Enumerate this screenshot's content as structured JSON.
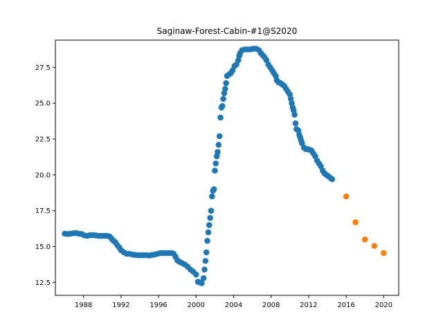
{
  "chart_data": {
    "type": "scatter",
    "title": "Saginaw-Forest-Cabin-#1@S2020",
    "xlabel": "",
    "ylabel": "",
    "xlim": [
      1985.0,
      2021.6
    ],
    "ylim": [
      11.6,
      29.4
    ],
    "x_ticks": [
      1988,
      1992,
      1996,
      2000,
      2004,
      2008,
      2012,
      2016,
      2020
    ],
    "y_ticks": [
      12.5,
      15.0,
      17.5,
      20.0,
      22.5,
      25.0,
      27.5
    ],
    "y_tick_labels": [
      "12.5",
      "15.0",
      "17.5",
      "20.0",
      "22.5",
      "25.0",
      "27.5"
    ],
    "grid": false,
    "legend": "none",
    "series": [
      {
        "color": "#1f77b4",
        "points": [
          [
            1986.0,
            15.9
          ],
          [
            1986.3,
            15.88
          ],
          [
            1986.6,
            15.9
          ],
          [
            1986.9,
            15.93
          ],
          [
            1987.2,
            15.95
          ],
          [
            1987.5,
            15.9
          ],
          [
            1987.8,
            15.88
          ],
          [
            1988.1,
            15.78
          ],
          [
            1988.4,
            15.75
          ],
          [
            1988.7,
            15.8
          ],
          [
            1989.0,
            15.8
          ],
          [
            1989.3,
            15.78
          ],
          [
            1989.6,
            15.75
          ],
          [
            1989.9,
            15.75
          ],
          [
            1990.2,
            15.75
          ],
          [
            1990.5,
            15.75
          ],
          [
            1990.8,
            15.7
          ],
          [
            1991.0,
            15.55
          ],
          [
            1991.2,
            15.4
          ],
          [
            1991.4,
            15.3
          ],
          [
            1991.6,
            15.1
          ],
          [
            1991.8,
            14.95
          ],
          [
            1992.0,
            14.75
          ],
          [
            1992.3,
            14.6
          ],
          [
            1992.6,
            14.5
          ],
          [
            1992.9,
            14.5
          ],
          [
            1993.2,
            14.45
          ],
          [
            1993.5,
            14.42
          ],
          [
            1993.8,
            14.4
          ],
          [
            1994.1,
            14.4
          ],
          [
            1994.4,
            14.4
          ],
          [
            1994.7,
            14.4
          ],
          [
            1995.0,
            14.38
          ],
          [
            1995.3,
            14.42
          ],
          [
            1995.6,
            14.45
          ],
          [
            1995.9,
            14.5
          ],
          [
            1996.2,
            14.55
          ],
          [
            1996.5,
            14.55
          ],
          [
            1996.8,
            14.55
          ],
          [
            1997.1,
            14.55
          ],
          [
            1997.4,
            14.55
          ],
          [
            1997.6,
            14.5
          ],
          [
            1997.8,
            14.3
          ],
          [
            1998.0,
            14.05
          ],
          [
            1998.2,
            13.95
          ],
          [
            1998.5,
            13.85
          ],
          [
            1998.8,
            13.75
          ],
          [
            1999.1,
            13.6
          ],
          [
            1999.4,
            13.4
          ],
          [
            1999.7,
            13.25
          ],
          [
            2000.0,
            13.05
          ],
          [
            2000.2,
            12.55
          ],
          [
            2000.4,
            12.5
          ],
          [
            2000.6,
            12.45
          ],
          [
            2000.8,
            12.8
          ],
          [
            2000.9,
            13.4
          ],
          [
            2001.0,
            14.0
          ],
          [
            2001.1,
            14.6
          ],
          [
            2001.2,
            15.4
          ],
          [
            2001.3,
            16.0
          ],
          [
            2001.4,
            16.5
          ],
          [
            2001.5,
            17.0
          ],
          [
            2001.6,
            17.5
          ],
          [
            2001.7,
            18.5
          ],
          [
            2001.8,
            18.9
          ],
          [
            2001.9,
            19.0
          ],
          [
            2002.0,
            20.3
          ],
          [
            2002.1,
            20.8
          ],
          [
            2002.2,
            21.3
          ],
          [
            2002.3,
            21.6
          ],
          [
            2002.4,
            22.1
          ],
          [
            2002.5,
            22.7
          ],
          [
            2002.6,
            24.0
          ],
          [
            2002.7,
            24.7
          ],
          [
            2002.8,
            24.8
          ],
          [
            2002.9,
            25.3
          ],
          [
            2003.0,
            25.7
          ],
          [
            2003.1,
            26.0
          ],
          [
            2003.2,
            26.4
          ],
          [
            2003.3,
            26.9
          ],
          [
            2003.5,
            27.0
          ],
          [
            2003.7,
            27.1
          ],
          [
            2003.9,
            27.3
          ],
          [
            2004.1,
            27.6
          ],
          [
            2004.3,
            27.7
          ],
          [
            2004.5,
            28.0
          ],
          [
            2004.6,
            28.3
          ],
          [
            2004.7,
            28.5
          ],
          [
            2004.9,
            28.7
          ],
          [
            2005.2,
            28.75
          ],
          [
            2005.5,
            28.75
          ],
          [
            2005.8,
            28.75
          ],
          [
            2006.1,
            28.8
          ],
          [
            2006.4,
            28.8
          ],
          [
            2006.7,
            28.7
          ],
          [
            2006.9,
            28.5
          ],
          [
            2007.1,
            28.35
          ],
          [
            2007.3,
            28.2
          ],
          [
            2007.5,
            28.0
          ],
          [
            2007.7,
            27.7
          ],
          [
            2007.9,
            27.5
          ],
          [
            2008.1,
            27.3
          ],
          [
            2008.3,
            27.1
          ],
          [
            2008.5,
            26.9
          ],
          [
            2008.6,
            26.6
          ],
          [
            2008.8,
            26.45
          ],
          [
            2009.0,
            26.4
          ],
          [
            2009.2,
            26.3
          ],
          [
            2009.4,
            26.2
          ],
          [
            2009.6,
            26.0
          ],
          [
            2009.8,
            25.8
          ],
          [
            2010.0,
            25.6
          ],
          [
            2010.1,
            25.3
          ],
          [
            2010.2,
            25.0
          ],
          [
            2010.3,
            24.7
          ],
          [
            2010.4,
            24.5
          ],
          [
            2010.5,
            24.2
          ],
          [
            2010.6,
            23.6
          ],
          [
            2010.7,
            23.2
          ],
          [
            2010.9,
            23.1
          ],
          [
            2011.0,
            22.8
          ],
          [
            2011.1,
            22.6
          ],
          [
            2011.2,
            22.4
          ],
          [
            2011.3,
            22.2
          ],
          [
            2011.5,
            21.9
          ],
          [
            2011.7,
            21.8
          ],
          [
            2011.9,
            21.8
          ],
          [
            2012.1,
            21.75
          ],
          [
            2012.3,
            21.7
          ],
          [
            2012.5,
            21.5
          ],
          [
            2012.7,
            21.3
          ],
          [
            2012.9,
            21.0
          ],
          [
            2013.1,
            20.8
          ],
          [
            2013.3,
            20.6
          ],
          [
            2013.5,
            20.3
          ],
          [
            2013.7,
            20.1
          ],
          [
            2013.9,
            20.0
          ],
          [
            2014.1,
            19.9
          ],
          [
            2014.3,
            19.8
          ],
          [
            2014.5,
            19.7
          ]
        ]
      },
      {
        "color": "#ff7f0e",
        "points": [
          [
            2016.0,
            18.5
          ],
          [
            2017.0,
            16.7
          ],
          [
            2018.0,
            15.5
          ],
          [
            2019.0,
            15.05
          ],
          [
            2020.0,
            14.55
          ]
        ]
      }
    ]
  }
}
